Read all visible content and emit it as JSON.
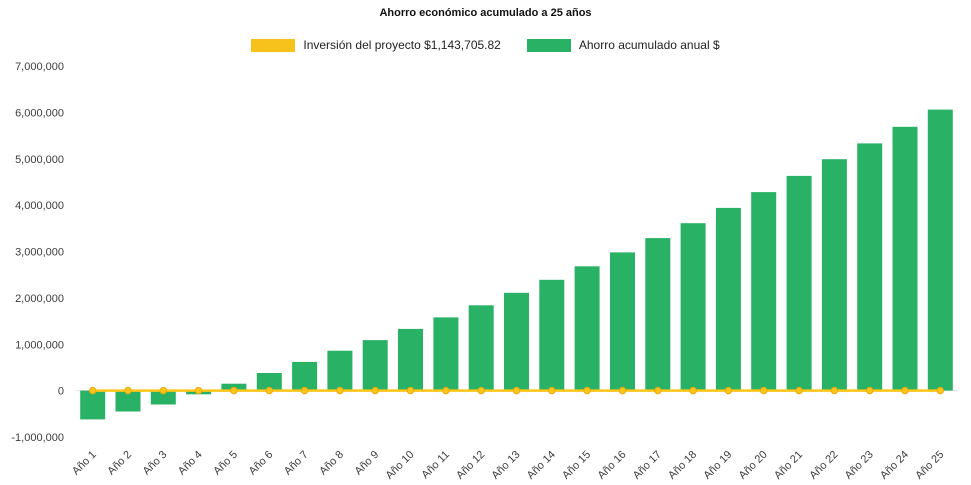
{
  "title": "Ahorro económico acumulado a 25 años",
  "legend": {
    "investment": {
      "label": "Inversión del proyecto $1,143,705.82",
      "color": "#F6C21B"
    },
    "savings": {
      "label": "Ahorro acumulado anual $",
      "color": "#29B265"
    }
  },
  "chart_data": {
    "type": "bar",
    "title": "Ahorro económico acumulado a 25 años",
    "categories": [
      "Año 1",
      "Año 2",
      "Año 3",
      "Año 4",
      "Año 5",
      "Año 6",
      "Año 7",
      "Año 8",
      "Año 9",
      "Año 10",
      "Año 11",
      "Año 12",
      "Año 13",
      "Año 14",
      "Año 15",
      "Año 16",
      "Año 17",
      "Año 18",
      "Año 19",
      "Año 20",
      "Año 21",
      "Año 22",
      "Año 23",
      "Año 24",
      "Año 25"
    ],
    "series": [
      {
        "name": "Inversión del proyecto $1,143,705.82",
        "type": "line",
        "color": "#FFC517",
        "marker_edge_color": "#EDA912",
        "values": [
          0,
          0,
          0,
          0,
          0,
          0,
          0,
          0,
          0,
          0,
          0,
          0,
          0,
          0,
          0,
          0,
          0,
          0,
          0,
          0,
          0,
          0,
          0,
          0,
          0
        ]
      },
      {
        "name": "Ahorro acumulado anual $",
        "type": "bar",
        "color": "#29B265",
        "values": [
          -620000,
          -450000,
          -300000,
          -80000,
          150000,
          380000,
          620000,
          860000,
          1090000,
          1330000,
          1580000,
          1840000,
          2110000,
          2390000,
          2680000,
          2980000,
          3290000,
          3610000,
          3940000,
          4280000,
          4630000,
          4990000,
          5330000,
          5690000,
          6060000
        ]
      }
    ],
    "xlabel": "",
    "ylabel": "",
    "ylim": [
      -1000000,
      7000000
    ],
    "ytick_step": 1000000,
    "ytick_labels": [
      "-1,000,000",
      "0",
      "1,000,000",
      "2,000,000",
      "3,000,000",
      "4,000,000",
      "5,000,000",
      "6,000,000",
      "7,000,000"
    ],
    "grid": false,
    "legend_position": "top"
  }
}
